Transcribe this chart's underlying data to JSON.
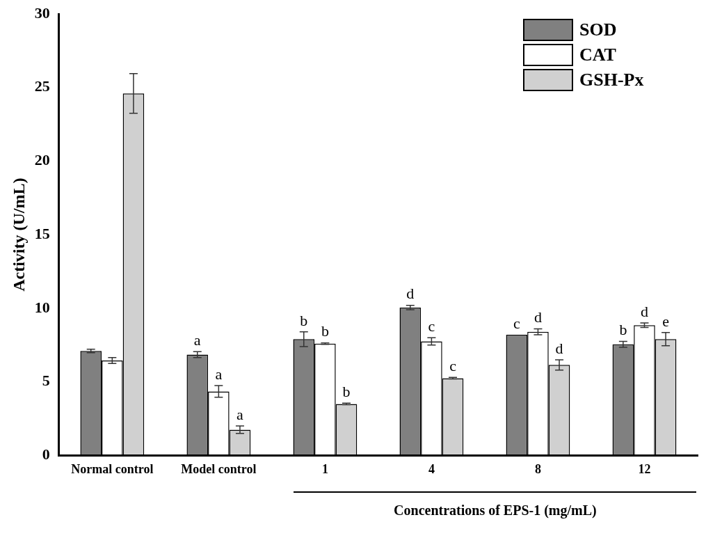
{
  "chart_data": {
    "type": "bar",
    "xlabel": "Concentrations of EPS-1 (mg/mL)",
    "ylabel": "Activity (U/mL)",
    "categories": [
      "Normal control",
      "Model control",
      "1",
      "4",
      "8",
      "12"
    ],
    "series": [
      {
        "name": "SOD",
        "color": "#808080",
        "values": [
          7.1,
          6.85,
          7.9,
          10.05,
          8.2,
          7.55
        ],
        "errors": [
          0.12,
          0.2,
          0.5,
          0.15,
          null,
          0.2
        ],
        "value_labels": [
          null,
          "a",
          "b",
          "d",
          "c",
          "b"
        ]
      },
      {
        "name": "CAT",
        "color": "#ffffff",
        "values": [
          6.45,
          4.35,
          7.6,
          7.75,
          8.4,
          8.85
        ],
        "errors": [
          0.2,
          0.4,
          0.05,
          0.25,
          0.2,
          0.15
        ],
        "value_labels": [
          null,
          "a",
          "b",
          "c",
          "d",
          "d"
        ]
      },
      {
        "name": "GSH-Px",
        "color": "#d0d0d0",
        "values": [
          24.6,
          1.75,
          3.5,
          5.25,
          6.15,
          7.9
        ],
        "errors": [
          1.35,
          0.25,
          0.05,
          0.05,
          0.35,
          0.45
        ],
        "value_labels": [
          null,
          "a",
          "b",
          "c",
          "d",
          "e"
        ]
      }
    ],
    "ylim": [
      0,
      30
    ],
    "yticks": [
      0,
      5,
      10,
      15,
      20,
      25,
      30
    ],
    "grid": false,
    "legend": "top right"
  }
}
